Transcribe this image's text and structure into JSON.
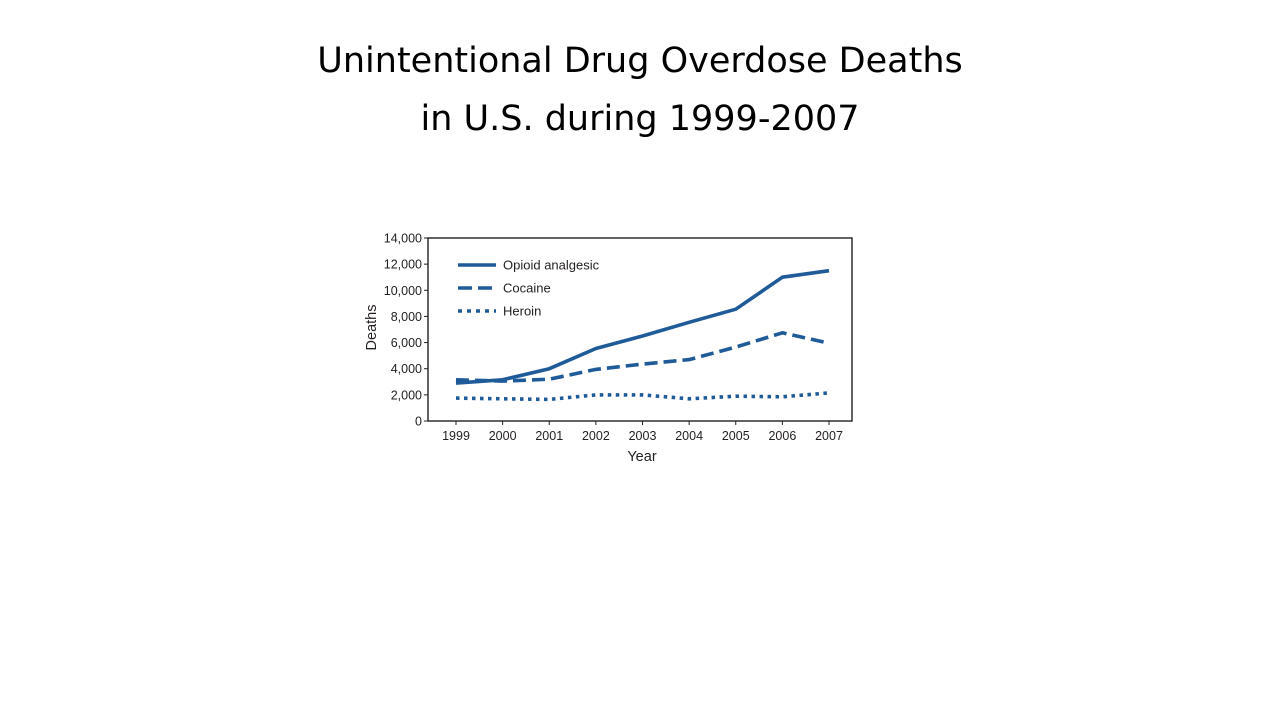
{
  "slide": {
    "title_line1": "Unintentional Drug Overdose Deaths",
    "title_line2": "in U.S. during 1999-2007"
  },
  "chart_data": {
    "type": "line",
    "title": "",
    "xlabel": "Year",
    "ylabel": "Deaths",
    "categories": [
      "1999",
      "2000",
      "2001",
      "2002",
      "2003",
      "2004",
      "2005",
      "2006",
      "2007"
    ],
    "y_tick_labels": [
      "0",
      "2,000",
      "4,000",
      "6,000",
      "8,000",
      "10,000",
      "12,000",
      "14,000"
    ],
    "y_ticks": [
      0,
      2000,
      4000,
      6000,
      8000,
      10000,
      12000,
      14000
    ],
    "ylim": [
      0,
      14000
    ],
    "grid": false,
    "legend_position": "top-left",
    "series": [
      {
        "name": "Opioid analgesic",
        "style": "solid",
        "values": [
          2900,
          3150,
          4000,
          5550,
          6500,
          7550,
          8550,
          11000,
          11500
        ]
      },
      {
        "name": "Cocaine",
        "style": "dashed",
        "values": [
          3150,
          3050,
          3200,
          3950,
          4350,
          4700,
          5650,
          6750,
          5950
        ]
      },
      {
        "name": "Heroin",
        "style": "dotted",
        "values": [
          1750,
          1700,
          1650,
          2000,
          2000,
          1700,
          1900,
          1850,
          2150
        ]
      }
    ],
    "colors": {
      "series": "#1f5b99",
      "axis": "#231f20"
    }
  }
}
